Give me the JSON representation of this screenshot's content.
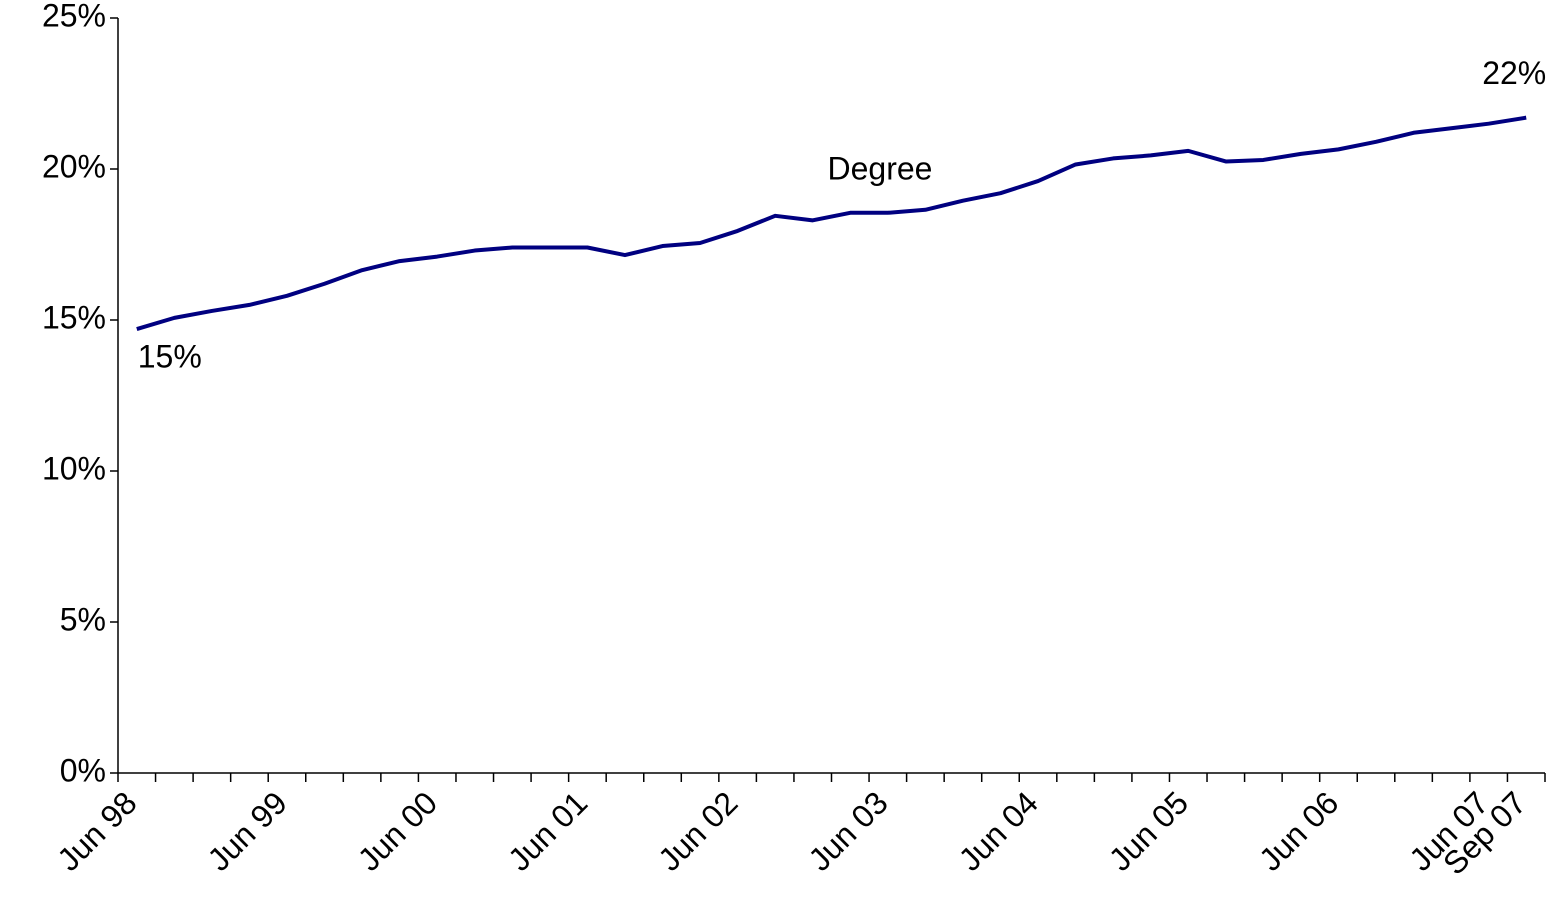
{
  "chart_data": {
    "type": "line",
    "categories": [
      "Jun 98",
      null,
      null,
      null,
      "Jun 99",
      null,
      null,
      null,
      "Jun 00",
      null,
      null,
      null,
      "Jun 01",
      null,
      null,
      null,
      "Jun 02",
      null,
      null,
      null,
      "Jun 03",
      null,
      null,
      null,
      "Jun 04",
      null,
      null,
      null,
      "Jun 05",
      null,
      null,
      null,
      "Jun 06",
      null,
      null,
      null,
      "Jun 07",
      "Sep 07"
    ],
    "series": [
      {
        "name": "Degree",
        "color": "#000080",
        "values": [
          14.7,
          15.07,
          15.3,
          15.5,
          15.8,
          16.2,
          16.65,
          16.95,
          17.1,
          17.3,
          17.4,
          17.4,
          17.4,
          17.15,
          17.45,
          17.55,
          17.95,
          18.45,
          18.3,
          18.55,
          18.55,
          18.65,
          18.95,
          19.2,
          19.6,
          20.15,
          20.35,
          20.45,
          20.6,
          20.25,
          20.3,
          20.5,
          20.65,
          20.9,
          21.2,
          21.35,
          21.5,
          21.7
        ],
        "value_labels": [
          "15%",
          null,
          null,
          null,
          null,
          null,
          null,
          null,
          null,
          null,
          null,
          null,
          null,
          null,
          null,
          null,
          null,
          null,
          null,
          null,
          null,
          null,
          null,
          null,
          null,
          null,
          null,
          null,
          null,
          null,
          null,
          null,
          null,
          null,
          null,
          null,
          null,
          "22%"
        ]
      }
    ],
    "ylim": [
      0,
      25
    ],
    "yticks": [
      {
        "value": 0,
        "label": "0%"
      },
      {
        "value": 5,
        "label": "5%"
      },
      {
        "value": 10,
        "label": "10%"
      },
      {
        "value": 15,
        "label": "15%"
      },
      {
        "value": 20,
        "label": "20%"
      },
      {
        "value": 25,
        "label": "25%"
      }
    ],
    "grid": false
  }
}
